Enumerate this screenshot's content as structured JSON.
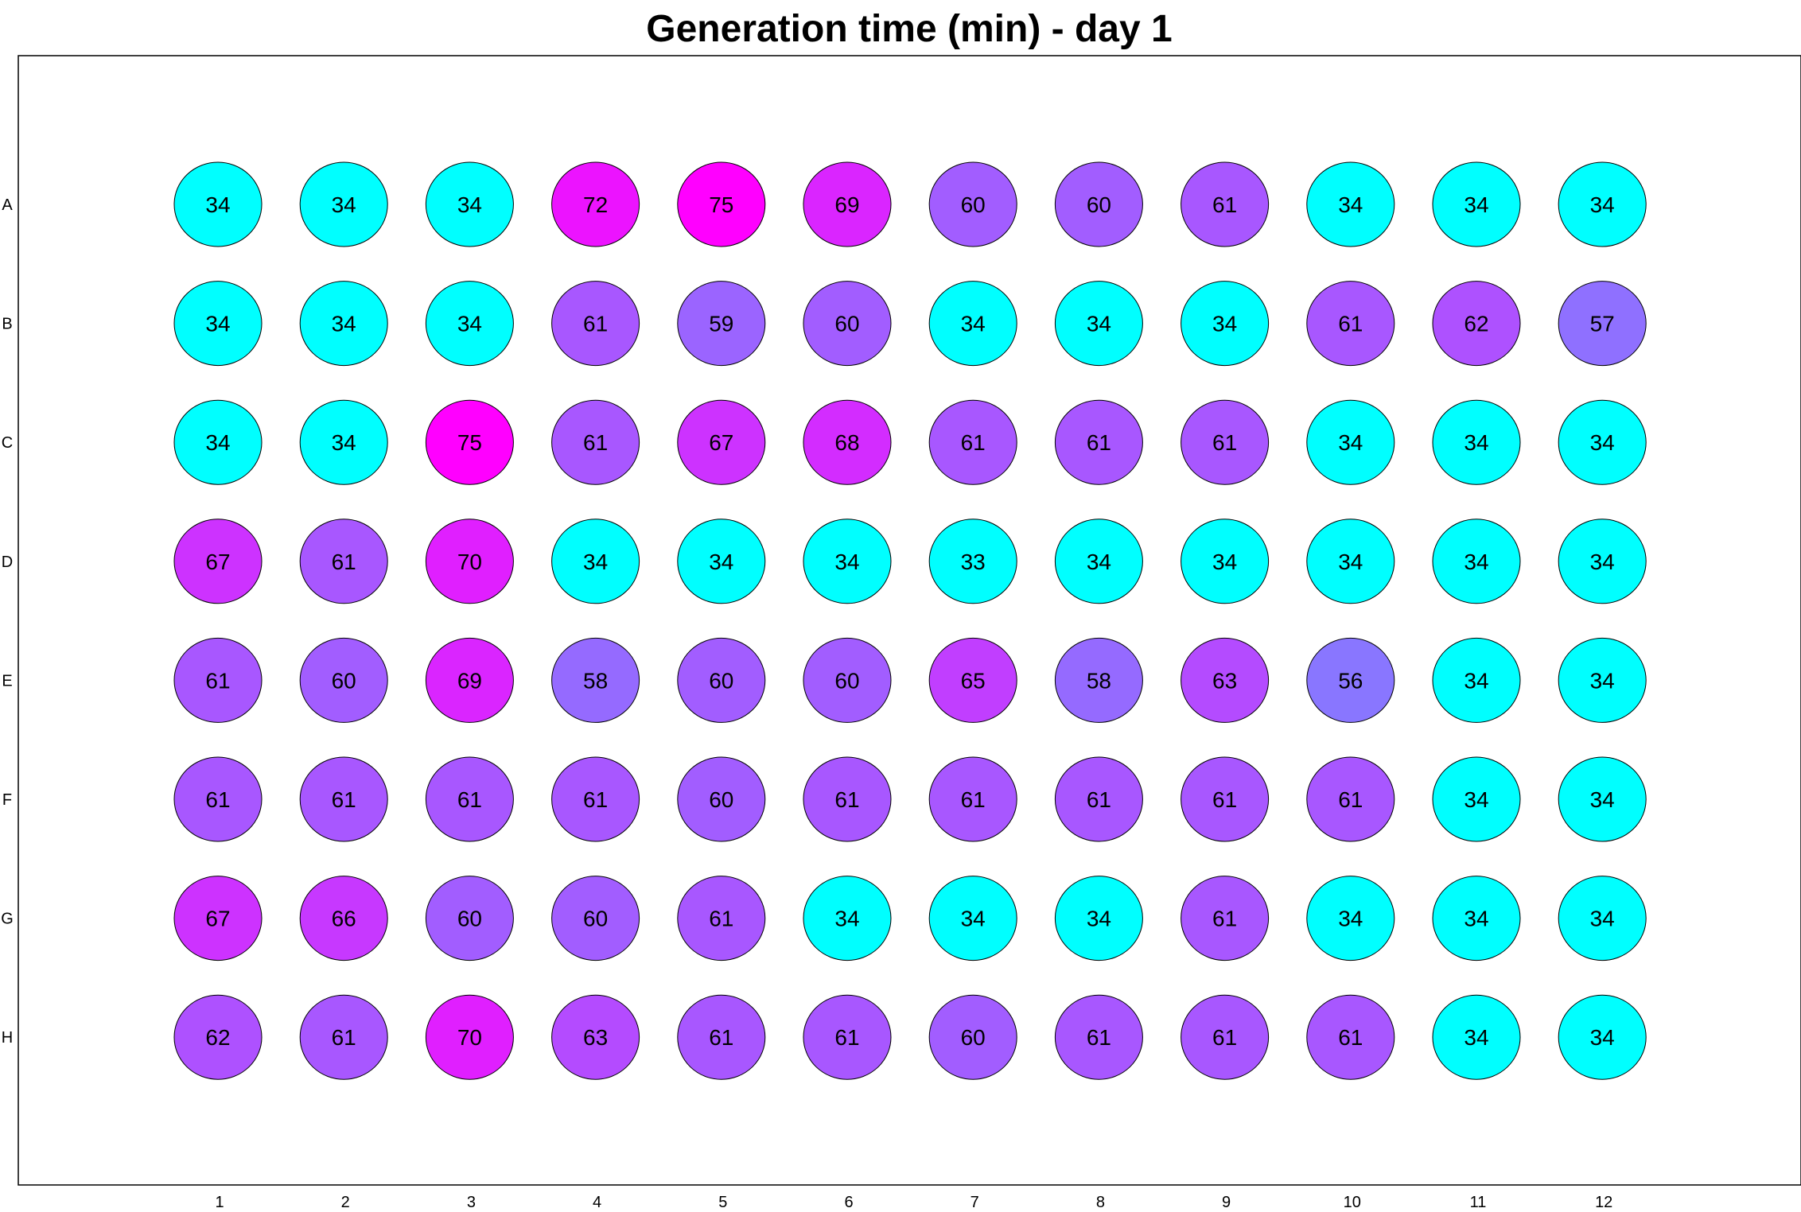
{
  "chart_data": {
    "type": "heatmap",
    "title": "Generation time (min) - day 1",
    "rows": [
      "A",
      "B",
      "C",
      "D",
      "E",
      "F",
      "G",
      "H"
    ],
    "columns": [
      "1",
      "2",
      "3",
      "4",
      "5",
      "6",
      "7",
      "8",
      "9",
      "10",
      "11",
      "12"
    ],
    "values": [
      [
        34,
        34,
        34,
        72,
        75,
        69,
        60,
        60,
        61,
        34,
        34,
        34
      ],
      [
        34,
        34,
        34,
        61,
        59,
        60,
        34,
        34,
        34,
        61,
        62,
        57
      ],
      [
        34,
        34,
        75,
        61,
        67,
        68,
        61,
        61,
        61,
        34,
        34,
        34
      ],
      [
        67,
        61,
        70,
        34,
        34,
        34,
        33,
        34,
        34,
        34,
        34,
        34
      ],
      [
        61,
        60,
        69,
        58,
        60,
        60,
        65,
        58,
        63,
        56,
        34,
        34
      ],
      [
        61,
        61,
        61,
        61,
        60,
        61,
        61,
        61,
        61,
        61,
        34,
        34
      ],
      [
        67,
        66,
        60,
        60,
        61,
        34,
        34,
        34,
        61,
        34,
        34,
        34
      ],
      [
        62,
        61,
        70,
        63,
        61,
        61,
        60,
        61,
        61,
        61,
        34,
        34
      ]
    ],
    "color_scale": {
      "low_value": 34,
      "low_color": "#00ffff",
      "high_value": 75,
      "high_color": "#ff00ff"
    },
    "grid": false,
    "legend": "none"
  }
}
